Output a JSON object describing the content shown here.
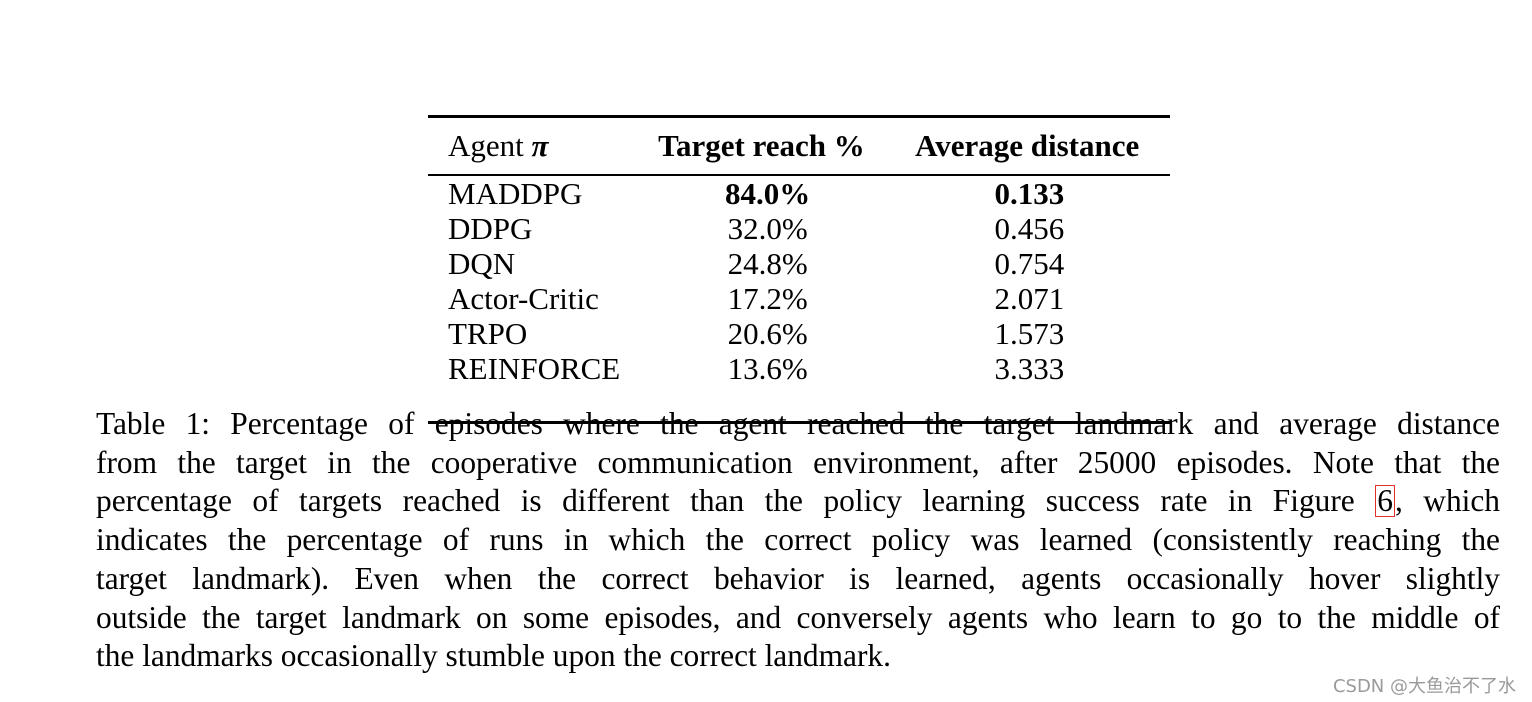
{
  "table": {
    "headers": {
      "agent": "Agent",
      "agent_symbol": "π",
      "reach": "Target reach %",
      "distance": "Average distance"
    },
    "rows": [
      {
        "agent": "MADDPG",
        "reach": "84.0%",
        "distance": "0.133",
        "best": true
      },
      {
        "agent": "DDPG",
        "reach": "32.0%",
        "distance": "0.456",
        "best": false
      },
      {
        "agent": "DQN",
        "reach": "24.8%",
        "distance": "0.754",
        "best": false
      },
      {
        "agent": "Actor-Critic",
        "reach": "17.2%",
        "distance": "2.071",
        "best": false
      },
      {
        "agent": "TRPO",
        "reach": "20.6%",
        "distance": "1.573",
        "best": false
      },
      {
        "agent": "REINFORCE",
        "reach": "13.6%",
        "distance": "3.333",
        "best": false
      }
    ]
  },
  "caption": {
    "line1": "Table 1:  Percentage of episodes where the agent reached the target landmark and average distance",
    "line2": "from the target in the cooperative communication environment, after 25000 episodes. Note that the",
    "line3_before": "percentage of targets reached is different than the policy learning success rate in Figure ",
    "figure_ref": "6",
    "line3_after": ", which",
    "line4": "indicates the percentage of runs in which the correct policy was learned (consistently reaching the",
    "line5": "target landmark).  Even when the correct behavior is learned, agents occasionally hover slightly",
    "line6": "outside the target landmark on some episodes, and conversely agents who learn to go to the middle of",
    "line7": "the landmarks occasionally stumble upon the correct landmark."
  },
  "watermark": "CSDN @大鱼治不了水"
}
